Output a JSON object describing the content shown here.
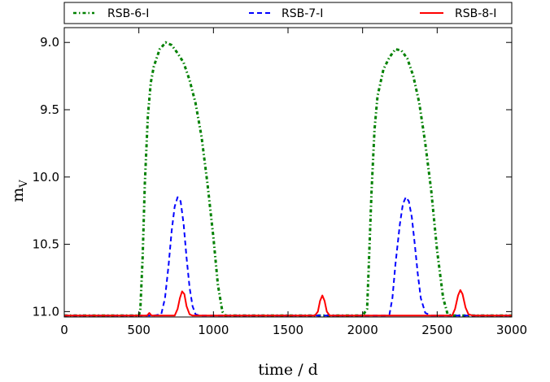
{
  "chart_data": {
    "type": "line",
    "xlabel": "time / d",
    "ylabel": "m_V",
    "xlim": [
      0,
      3000
    ],
    "ylim": [
      11.04,
      8.89
    ],
    "y_inverted": true,
    "x_ticks": [
      0,
      500,
      1000,
      1500,
      2000,
      2500,
      3000
    ],
    "x_tick_labels": [
      "0",
      "500",
      "1000",
      "1500",
      "2000",
      "2500",
      "3000"
    ],
    "y_ticks": [
      9.0,
      9.5,
      10.0,
      10.5,
      11.0
    ],
    "y_tick_labels": [
      "9.0",
      "9.5",
      "10.0",
      "10.5",
      "11.0"
    ],
    "grid": false,
    "legend_position": "top, outside the axes",
    "series": [
      {
        "name": "RSB-6-I",
        "color": "#008000",
        "style": "dash-dot",
        "x": [
          0,
          500,
          510,
          525,
          540,
          560,
          580,
          600,
          640,
          680,
          720,
          760,
          800,
          840,
          880,
          920,
          960,
          1000,
          1030,
          1060,
          1080,
          1200,
          1500,
          2000,
          2030,
          2040,
          2060,
          2080,
          2100,
          2140,
          2180,
          2220,
          2260,
          2300,
          2340,
          2380,
          2420,
          2460,
          2500,
          2540,
          2570,
          2600,
          3000
        ],
        "y": [
          11.03,
          11.03,
          10.98,
          10.6,
          10.05,
          9.55,
          9.3,
          9.18,
          9.05,
          9.0,
          9.02,
          9.08,
          9.15,
          9.28,
          9.45,
          9.7,
          10.05,
          10.45,
          10.8,
          11.0,
          11.03,
          11.03,
          11.03,
          11.03,
          10.98,
          10.7,
          10.1,
          9.65,
          9.4,
          9.2,
          9.11,
          9.05,
          9.06,
          9.12,
          9.25,
          9.45,
          9.75,
          10.1,
          10.55,
          10.9,
          11.02,
          11.03,
          11.03
        ]
      },
      {
        "name": "RSB-7-I",
        "color": "#0000ff",
        "style": "dashed",
        "x": [
          0,
          600,
          650,
          675,
          700,
          720,
          740,
          760,
          780,
          800,
          820,
          840,
          860,
          880,
          910,
          1000,
          1500,
          2000,
          2150,
          2180,
          2200,
          2220,
          2250,
          2270,
          2290,
          2310,
          2330,
          2350,
          2370,
          2390,
          2420,
          2460,
          2500,
          3000
        ],
        "y": [
          11.03,
          11.03,
          11.02,
          10.9,
          10.65,
          10.4,
          10.22,
          10.15,
          10.18,
          10.35,
          10.6,
          10.82,
          10.96,
          11.02,
          11.03,
          11.03,
          11.03,
          11.03,
          11.03,
          11.02,
          10.9,
          10.65,
          10.35,
          10.2,
          10.15,
          10.18,
          10.3,
          10.5,
          10.72,
          10.9,
          11.01,
          11.03,
          11.03,
          11.03
        ]
      },
      {
        "name": "RSB-8-I",
        "color": "#ff0000",
        "style": "solid",
        "x": [
          0,
          555,
          570,
          585,
          600,
          740,
          760,
          775,
          790,
          805,
          820,
          840,
          860,
          1500,
          1680,
          1700,
          1715,
          1730,
          1745,
          1760,
          1780,
          1800,
          2550,
          2600,
          2620,
          2640,
          2655,
          2670,
          2690,
          2710,
          2740,
          3000
        ],
        "y": [
          11.03,
          11.03,
          11.01,
          11.03,
          11.03,
          11.03,
          10.98,
          10.9,
          10.85,
          10.87,
          10.96,
          11.02,
          11.03,
          11.03,
          11.03,
          11.0,
          10.92,
          10.88,
          10.92,
          11.0,
          11.03,
          11.03,
          11.03,
          11.03,
          10.98,
          10.88,
          10.84,
          10.87,
          10.97,
          11.02,
          11.03,
          11.03
        ]
      }
    ]
  }
}
